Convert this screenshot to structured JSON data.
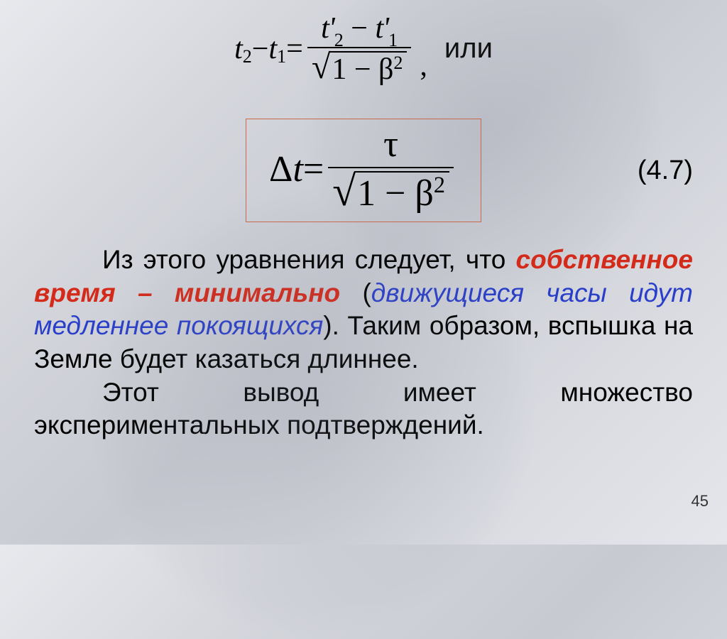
{
  "equation1": {
    "lhs_t": "t",
    "sub2": "2",
    "minus": " − ",
    "sub1": "1",
    "equals": " = ",
    "t_prime": "t'",
    "one_minus": "1 − ",
    "beta": "β",
    "sq": "2",
    "radical": "√",
    "comma": ","
  },
  "ili": "или",
  "equation2": {
    "delta": "Δ",
    "t": "t",
    "equals": " = ",
    "tau": "τ",
    "one_minus": "1 − ",
    "beta": "β",
    "sq": "2",
    "radical": "√"
  },
  "eqnum": "(4.7)",
  "para": {
    "p1_a": "Из этого уравнения следует, что ",
    "p1_red": "собственное время – минимально ",
    "p1_b_open": "(",
    "p1_blue": "движущиеся часы идут медленнее покоящихся",
    "p1_b_close": "). Таким образом, вспышка на Земле будет казаться длиннее.",
    "p2": "Этот вывод имеет множество экспериментальных подтверждений."
  },
  "pagenum": "45",
  "colors": {
    "red": "#d42a1a",
    "blue": "#2a3fc9",
    "box_border": "#c86a4a",
    "text": "#000000"
  },
  "fontsizes": {
    "eq1": 42,
    "eq2": 52,
    "body": 37,
    "eqnum": 38,
    "ili": 40,
    "pagenum": 22
  }
}
